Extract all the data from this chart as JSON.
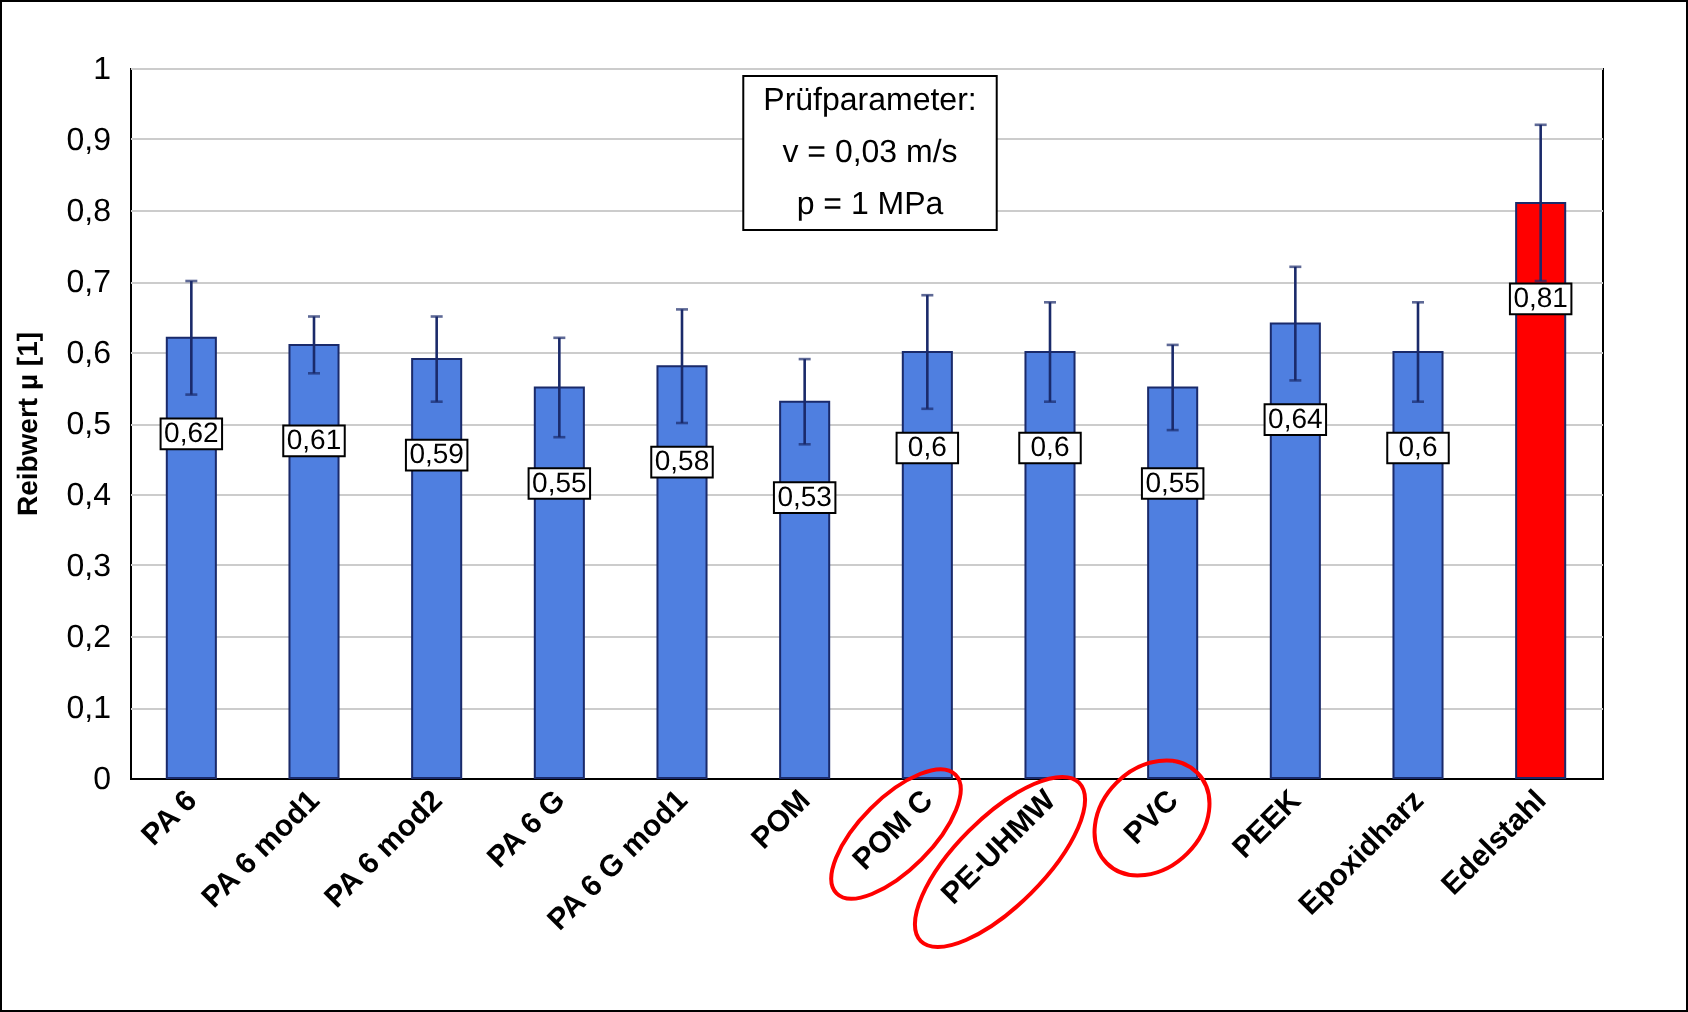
{
  "chart_data": {
    "type": "bar",
    "ylabel": "Reibwert µ [1]",
    "categories": [
      "PA 6",
      "PA 6 mod1",
      "PA 6  mod2",
      "PA 6 G",
      "PA 6 G mod1",
      "POM",
      "POM C",
      "PE-UHMW",
      "PVC",
      "PEEK",
      "Epoxidharz",
      "Edelstahl"
    ],
    "values": [
      0.62,
      0.61,
      0.59,
      0.55,
      0.58,
      0.53,
      0.6,
      0.6,
      0.55,
      0.64,
      0.6,
      0.81
    ],
    "errors": [
      0.08,
      0.04,
      0.06,
      0.07,
      0.08,
      0.06,
      0.08,
      0.07,
      0.06,
      0.08,
      0.07,
      0.11
    ],
    "value_labels": [
      "0,62",
      "0,61",
      "0,59",
      "0,55",
      "0,58",
      "0,53",
      "0,6",
      "0,6",
      "0,55",
      "0,64",
      "0,6",
      "0,81"
    ],
    "colors": [
      "#4f7fe0",
      "#4f7fe0",
      "#4f7fe0",
      "#4f7fe0",
      "#4f7fe0",
      "#4f7fe0",
      "#4f7fe0",
      "#4f7fe0",
      "#4f7fe0",
      "#4f7fe0",
      "#4f7fe0",
      "#ff0000"
    ],
    "annotations": [
      "Prüfparameter:\nv = 0,03 m/s\np = 1 MPa"
    ],
    "ylim": [
      0,
      1
    ],
    "yticks": [
      0,
      {
        "value": 0.1,
        "label": "0,1"
      },
      {
        "value": 0.2,
        "label": "0,2"
      },
      {
        "value": 0.3,
        "label": "0,3"
      },
      {
        "value": 0.4,
        "label": "0,4"
      },
      {
        "value": 0.5,
        "label": "0,5"
      },
      {
        "value": 0.6,
        "label": "0,6"
      },
      {
        "value": 0.7,
        "label": "0,7"
      },
      {
        "value": 0.8,
        "label": "0,8"
      },
      {
        "value": 0.9,
        "label": "0,9"
      },
      1
    ],
    "grid": "y"
  }
}
